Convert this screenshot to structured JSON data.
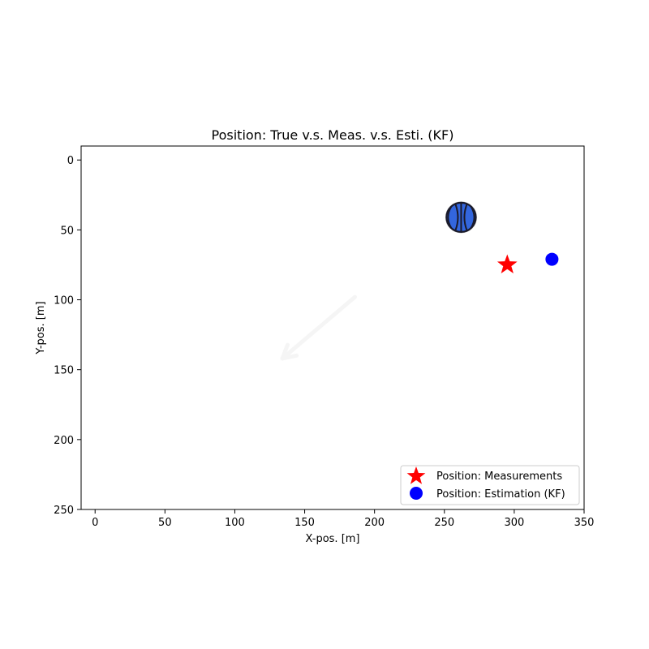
{
  "chart_data": {
    "type": "scatter",
    "title": "Position: True v.s. Meas. v.s. Esti. (KF)",
    "xlabel": "X-pos. [m]",
    "ylabel": "Y-pos. [m]",
    "xlim": [
      -10,
      350
    ],
    "ylim": [
      250,
      -10
    ],
    "y_inverted": true,
    "x_ticks": [
      0,
      50,
      100,
      150,
      200,
      250,
      300,
      350
    ],
    "y_ticks": [
      0,
      50,
      100,
      150,
      200,
      250
    ],
    "grid": false,
    "legend_placement": "lower-right",
    "ball": {
      "x": 262,
      "y": 41,
      "icon": "basketball-icon",
      "color": "#3366dd"
    },
    "faded_arrow": {
      "from": [
        186,
        98
      ],
      "to": [
        134,
        142
      ],
      "icon": "faded-arrow-icon"
    },
    "series": [
      {
        "name": "Position: Measurements",
        "marker": "star",
        "color": "#ff0000",
        "points": [
          {
            "x": 295,
            "y": 75
          }
        ]
      },
      {
        "name": "Position: Estimation (KF)",
        "marker": "circle",
        "color": "#0000ff",
        "points": [
          {
            "x": 327,
            "y": 71
          }
        ]
      }
    ]
  }
}
